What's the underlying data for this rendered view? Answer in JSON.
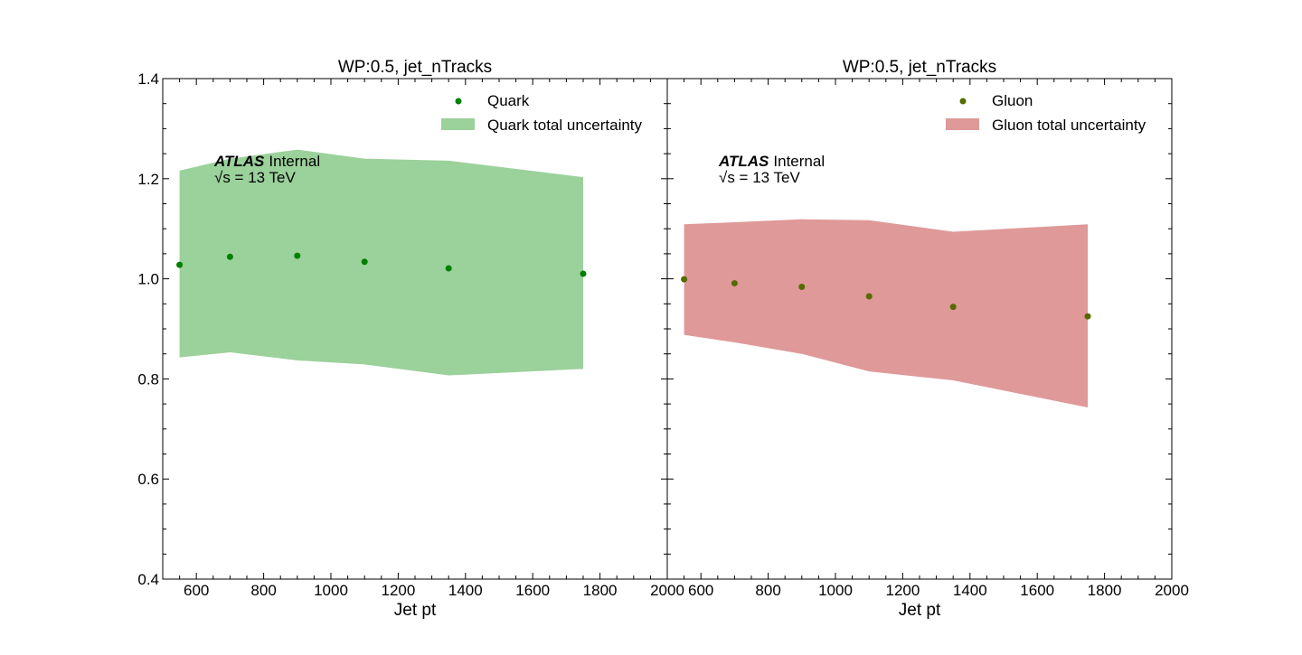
{
  "chart_data": [
    {
      "type": "scatter",
      "title": "WP:0.5, jet_nTracks",
      "xlabel": "Jet pt",
      "ylabel": "",
      "xlim": [
        500,
        2000
      ],
      "ylim": [
        0.4,
        1.4
      ],
      "xticks": [
        600,
        800,
        1000,
        1200,
        1400,
        1600,
        1800,
        2000
      ],
      "yticks": [
        0.4,
        0.6,
        0.8,
        1.0,
        1.2,
        1.4
      ],
      "ytick_labels": [
        "0.4",
        "0.6",
        "0.8",
        "1.0",
        "1.2",
        "1.4"
      ],
      "grid": false,
      "legend_position": "top-right",
      "annotation": {
        "experiment": "ATLAS",
        "label": "Internal",
        "energy": "√s =  13 TeV"
      },
      "series": [
        {
          "name": "Quark",
          "kind": "points",
          "color": "#008000",
          "x": [
            550,
            700,
            900,
            1100,
            1350,
            1750
          ],
          "y": [
            1.028,
            1.044,
            1.046,
            1.034,
            1.021,
            1.01
          ]
        },
        {
          "name": "Quark total uncertainty",
          "kind": "band",
          "color": "#9bd19b",
          "x": [
            550,
            700,
            900,
            1100,
            1350,
            1750
          ],
          "upper": [
            1.216,
            1.24,
            1.258,
            1.24,
            1.236,
            1.203
          ],
          "lower": [
            0.843,
            0.853,
            0.837,
            0.829,
            0.807,
            0.82
          ]
        }
      ]
    },
    {
      "type": "scatter",
      "title": "WP:0.5, jet_nTracks",
      "xlabel": "Jet pt",
      "ylabel": "",
      "xlim": [
        500,
        2000
      ],
      "ylim": [
        0.4,
        1.4
      ],
      "xticks": [
        600,
        800,
        1000,
        1200,
        1400,
        1600,
        1800,
        2000
      ],
      "grid": false,
      "legend_position": "top-right",
      "annotation": {
        "experiment": "ATLAS",
        "label": "Internal",
        "energy": "√s =  13 TeV"
      },
      "series": [
        {
          "name": "Gluon",
          "kind": "points",
          "color": "#556b00",
          "x": [
            550,
            700,
            900,
            1100,
            1350,
            1750
          ],
          "y": [
            0.999,
            0.991,
            0.984,
            0.965,
            0.944,
            0.925
          ]
        },
        {
          "name": "Gluon total uncertainty",
          "kind": "band",
          "color": "#df9999",
          "x": [
            550,
            700,
            900,
            1100,
            1350,
            1750
          ],
          "upper": [
            1.109,
            1.113,
            1.119,
            1.117,
            1.094,
            1.109
          ],
          "lower": [
            0.888,
            0.873,
            0.85,
            0.815,
            0.797,
            0.743
          ]
        }
      ]
    }
  ]
}
